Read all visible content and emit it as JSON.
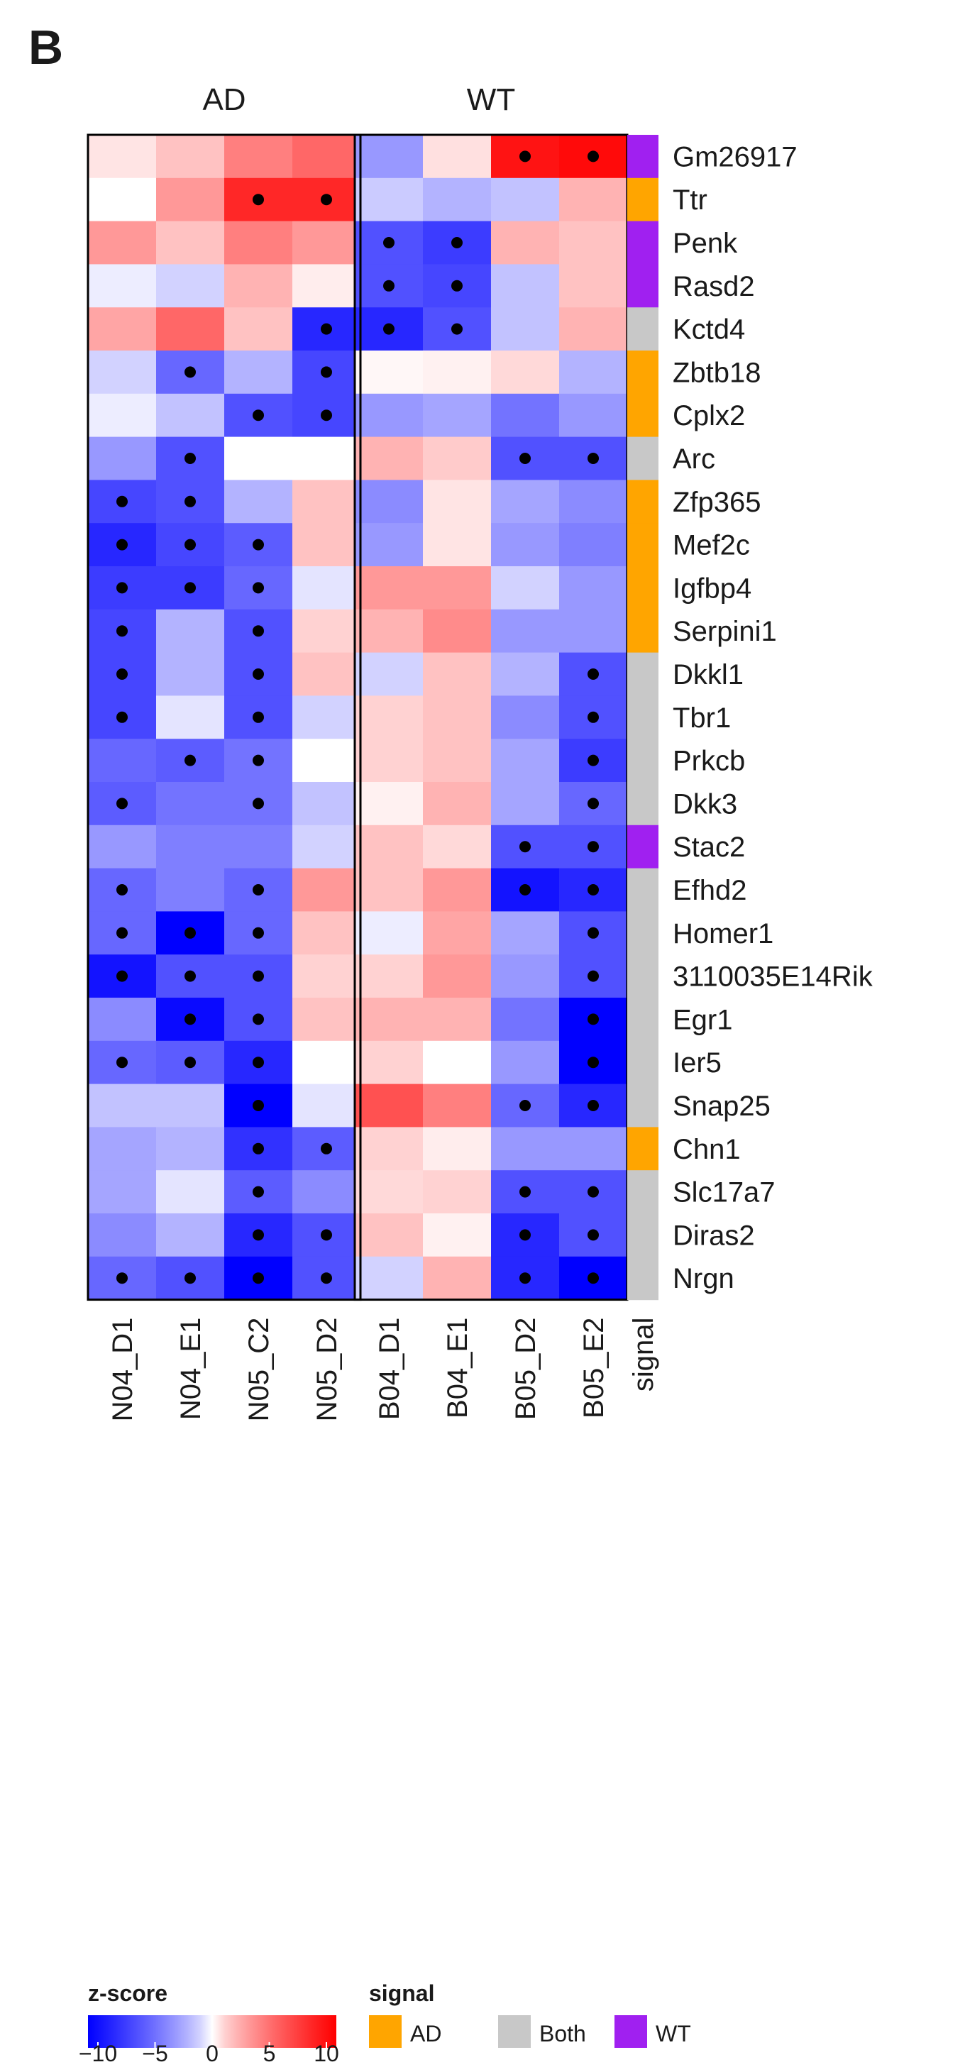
{
  "panel_label": "B",
  "chart_data": {
    "type": "heatmap",
    "groups": [
      {
        "name": "AD",
        "columns": [
          "N04_D1",
          "N04_E1",
          "N05_C2",
          "N05_D2"
        ]
      },
      {
        "name": "WT",
        "columns": [
          "B04_D1",
          "B04_E1",
          "B05_D2",
          "B05_E2"
        ]
      }
    ],
    "columns": [
      "N04_D1",
      "N04_E1",
      "N05_C2",
      "N05_D2",
      "B04_D1",
      "B04_E1",
      "B05_D2",
      "B05_E2"
    ],
    "rows": [
      "Gm26917",
      "Ttr",
      "Penk",
      "Rasd2",
      "Kctd4",
      "Zbtb18",
      "Cplx2",
      "Arc",
      "Zfp365",
      "Mef2c",
      "Igfbp4",
      "Serpini1",
      "Dkkl1",
      "Tbr1",
      "Prkcb",
      "Dkk3",
      "Stac2",
      "Efhd2",
      "Homer1",
      "3110035E14Rik",
      "Egr1",
      "Ier5",
      "Snap25",
      "Chn1",
      "Slc17a7",
      "Diras2",
      "Nrgn"
    ],
    "signal": [
      "WT",
      "AD",
      "WT",
      "WT",
      "Both",
      "AD",
      "AD",
      "Both",
      "AD",
      "AD",
      "AD",
      "AD",
      "Both",
      "Both",
      "Both",
      "Both",
      "WT",
      "Both",
      "Both",
      "Both",
      "Both",
      "Both",
      "Both",
      "AD",
      "Both",
      "Both",
      "Both"
    ],
    "signal_column_label": "signal",
    "values": [
      [
        0.5,
        1.5,
        4,
        5,
        -3,
        0.6,
        9,
        9.5
      ],
      [
        0,
        3,
        8,
        8,
        -1.2,
        -2,
        -1.5,
        2
      ],
      [
        3,
        1.5,
        4,
        3,
        -6,
        -7,
        2,
        1.5
      ],
      [
        -0.3,
        -1,
        2,
        0.3,
        -6,
        -6.5,
        -1.5,
        1.5
      ],
      [
        2.5,
        5,
        1.5,
        -8,
        -8,
        -6,
        -1.5,
        2
      ],
      [
        -1,
        -5,
        -2,
        -6.5,
        0.1,
        0.2,
        0.8,
        -2
      ],
      [
        -0.3,
        -1.5,
        -6,
        -6.5,
        -3,
        -2.5,
        -4.5,
        -3
      ],
      [
        -3,
        -6,
        0,
        0,
        2,
        1.2,
        -6,
        -6
      ],
      [
        -6.5,
        -6,
        -2,
        1.5,
        -3.5,
        0.5,
        -2.5,
        -3.5
      ],
      [
        -8,
        -6.5,
        -5.5,
        1.5,
        -3,
        0.5,
        -3,
        -4
      ],
      [
        -7,
        -7,
        -5,
        -0.5,
        3,
        3,
        -1,
        -3
      ],
      [
        -6.5,
        -2,
        -6,
        1,
        2,
        3.5,
        -3,
        -3
      ],
      [
        -6.5,
        -2,
        -6,
        1.5,
        -1,
        1.5,
        -2,
        -6
      ],
      [
        -6.5,
        -0.5,
        -6,
        -1,
        1,
        1.5,
        -3.5,
        -6
      ],
      [
        -5,
        -5.5,
        -4.5,
        0,
        1,
        1.5,
        -2.5,
        -7
      ],
      [
        -5.5,
        -4.5,
        -4.5,
        -1.5,
        0.2,
        2,
        -2.5,
        -5
      ],
      [
        -3,
        -4,
        -4,
        -1,
        1.5,
        0.8,
        -6,
        -6
      ],
      [
        -5,
        -4,
        -5,
        3,
        1.5,
        3,
        -9,
        -8
      ],
      [
        -5,
        -10,
        -5,
        1.5,
        -0.3,
        2.5,
        -2.5,
        -6
      ],
      [
        -9,
        -6,
        -6,
        1,
        1,
        3,
        -3,
        -6
      ],
      [
        -3.5,
        -9.5,
        -6,
        1.5,
        2,
        2,
        -4.5,
        -10
      ],
      [
        -5,
        -5.5,
        -8,
        0,
        1,
        0,
        -3,
        -10
      ],
      [
        -1.5,
        -1.5,
        -10,
        -0.5,
        6,
        4,
        -5,
        -8
      ],
      [
        -2.5,
        -2,
        -7.5,
        -5.5,
        1,
        0.3,
        -3,
        -3
      ],
      [
        -2.5,
        -0.5,
        -5.5,
        -3.5,
        0.8,
        1,
        -6,
        -6
      ],
      [
        -3.5,
        -2,
        -8,
        -6,
        1.5,
        0.2,
        -8,
        -6
      ],
      [
        -5,
        -6,
        -10,
        -6,
        -1,
        2,
        -8,
        -10
      ]
    ],
    "significant": [
      [
        0,
        0,
        0,
        0,
        0,
        0,
        1,
        1
      ],
      [
        0,
        0,
        1,
        1,
        0,
        0,
        0,
        0
      ],
      [
        0,
        0,
        0,
        0,
        1,
        1,
        0,
        0
      ],
      [
        0,
        0,
        0,
        0,
        1,
        1,
        0,
        0
      ],
      [
        0,
        0,
        0,
        1,
        1,
        1,
        0,
        0
      ],
      [
        0,
        1,
        0,
        1,
        0,
        0,
        0,
        0
      ],
      [
        0,
        0,
        1,
        1,
        0,
        0,
        0,
        0
      ],
      [
        0,
        1,
        0,
        0,
        0,
        0,
        1,
        1
      ],
      [
        1,
        1,
        0,
        0,
        0,
        0,
        0,
        0
      ],
      [
        1,
        1,
        1,
        0,
        0,
        0,
        0,
        0
      ],
      [
        1,
        1,
        1,
        0,
        0,
        0,
        0,
        0
      ],
      [
        1,
        0,
        1,
        0,
        0,
        0,
        0,
        0
      ],
      [
        1,
        0,
        1,
        0,
        0,
        0,
        0,
        1
      ],
      [
        1,
        0,
        1,
        0,
        0,
        0,
        0,
        1
      ],
      [
        0,
        1,
        1,
        0,
        0,
        0,
        0,
        1
      ],
      [
        1,
        0,
        1,
        0,
        0,
        0,
        0,
        1
      ],
      [
        0,
        0,
        0,
        0,
        0,
        0,
        1,
        1
      ],
      [
        1,
        0,
        1,
        0,
        0,
        0,
        1,
        1
      ],
      [
        1,
        1,
        1,
        0,
        0,
        0,
        0,
        1
      ],
      [
        1,
        1,
        1,
        0,
        0,
        0,
        0,
        1
      ],
      [
        0,
        1,
        1,
        0,
        0,
        0,
        0,
        1
      ],
      [
        1,
        1,
        1,
        0,
        0,
        0,
        0,
        1
      ],
      [
        0,
        0,
        1,
        0,
        0,
        0,
        1,
        1
      ],
      [
        0,
        0,
        1,
        1,
        0,
        0,
        0,
        0
      ],
      [
        0,
        0,
        1,
        0,
        0,
        0,
        1,
        1
      ],
      [
        0,
        0,
        1,
        1,
        0,
        0,
        1,
        1
      ],
      [
        1,
        1,
        1,
        1,
        0,
        0,
        1,
        1
      ]
    ],
    "colorscale": {
      "title": "z-score",
      "range": [
        -10,
        10
      ],
      "ticks": [
        "−10",
        "−5",
        "0",
        "5",
        "10"
      ],
      "low": "#0000ff",
      "mid": "#ffffff",
      "high": "#ff0000"
    },
    "signal_legend": {
      "title": "signal",
      "items": [
        {
          "label": "AD",
          "color": "#ffa500"
        },
        {
          "label": "Both",
          "color": "#c8c8c8"
        },
        {
          "label": "WT",
          "color": "#a020f0"
        }
      ]
    }
  }
}
